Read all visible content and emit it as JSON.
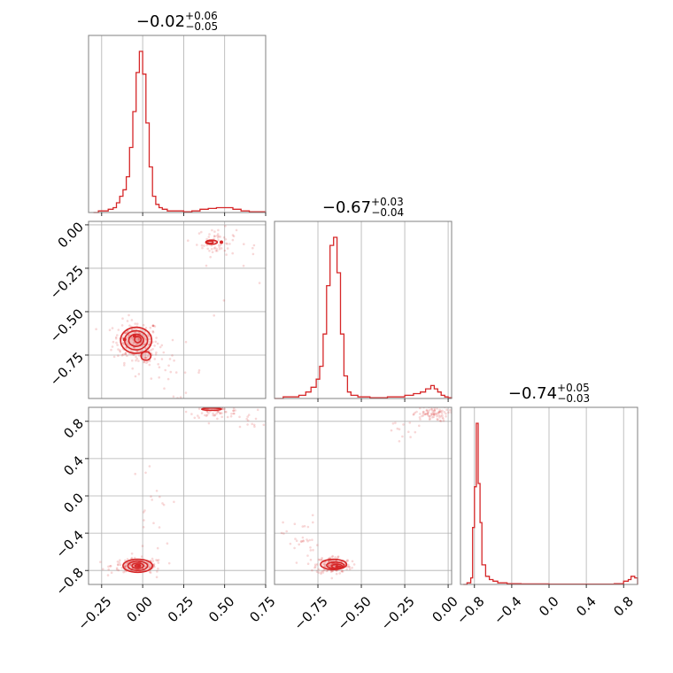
{
  "chart_data": {
    "type": "corner",
    "color": "#d62728",
    "axes_color": "#808080",
    "grid": true,
    "params": [
      {
        "median": -0.02,
        "plus": 0.06,
        "minus": 0.05,
        "title_main": "−0.02",
        "title_sup": "+0.06",
        "title_sub": "−0.05",
        "range": [
          -0.33,
          0.75
        ],
        "ticks": [
          -0.25,
          0.0,
          0.25,
          0.5,
          0.75
        ],
        "tick_labels": [
          "−0.25",
          "0.00",
          "0.25",
          "0.50",
          "0.75"
        ],
        "hist": [
          [
            -0.3,
            0.0
          ],
          [
            -0.27,
            0.01
          ],
          [
            -0.24,
            0.01
          ],
          [
            -0.21,
            0.02
          ],
          [
            -0.18,
            0.03
          ],
          [
            -0.16,
            0.06
          ],
          [
            -0.14,
            0.1
          ],
          [
            -0.12,
            0.14
          ],
          [
            -0.1,
            0.22
          ],
          [
            -0.08,
            0.4
          ],
          [
            -0.06,
            0.62
          ],
          [
            -0.04,
            0.86
          ],
          [
            -0.02,
            0.99
          ],
          [
            0.0,
            0.85
          ],
          [
            0.02,
            0.55
          ],
          [
            0.04,
            0.28
          ],
          [
            0.06,
            0.1
          ],
          [
            0.08,
            0.05
          ],
          [
            0.1,
            0.03
          ],
          [
            0.12,
            0.02
          ],
          [
            0.15,
            0.01
          ],
          [
            0.2,
            0.01
          ],
          [
            0.25,
            0.005
          ],
          [
            0.3,
            0.01
          ],
          [
            0.35,
            0.02
          ],
          [
            0.4,
            0.025
          ],
          [
            0.45,
            0.03
          ],
          [
            0.5,
            0.03
          ],
          [
            0.55,
            0.02
          ],
          [
            0.6,
            0.01
          ],
          [
            0.65,
            0.005
          ],
          [
            0.7,
            0.005
          ],
          [
            0.75,
            0.0
          ]
        ]
      },
      {
        "median": -0.67,
        "plus": 0.03,
        "minus": 0.04,
        "title_main": "−0.67",
        "title_sup": "+0.03",
        "title_sub": "−0.04",
        "range": [
          -1.0,
          0.02
        ],
        "ticks": [
          -0.75,
          -0.5,
          -0.25,
          0.0
        ],
        "tick_labels": [
          "−0.75",
          "−0.50",
          "−0.25",
          "0.00"
        ],
        "hist": [
          [
            -1.0,
            0.0
          ],
          [
            -0.95,
            0.01
          ],
          [
            -0.9,
            0.01
          ],
          [
            -0.86,
            0.02
          ],
          [
            -0.82,
            0.04
          ],
          [
            -0.79,
            0.07
          ],
          [
            -0.76,
            0.12
          ],
          [
            -0.74,
            0.2
          ],
          [
            -0.72,
            0.4
          ],
          [
            -0.7,
            0.7
          ],
          [
            -0.68,
            0.95
          ],
          [
            -0.66,
            1.0
          ],
          [
            -0.64,
            0.78
          ],
          [
            -0.62,
            0.4
          ],
          [
            -0.6,
            0.14
          ],
          [
            -0.58,
            0.04
          ],
          [
            -0.56,
            0.02
          ],
          [
            -0.52,
            0.01
          ],
          [
            -0.45,
            0.005
          ],
          [
            -0.35,
            0.01
          ],
          [
            -0.25,
            0.02
          ],
          [
            -0.2,
            0.03
          ],
          [
            -0.16,
            0.04
          ],
          [
            -0.13,
            0.06
          ],
          [
            -0.1,
            0.08
          ],
          [
            -0.08,
            0.06
          ],
          [
            -0.06,
            0.04
          ],
          [
            -0.04,
            0.02
          ],
          [
            -0.02,
            0.01
          ],
          [
            0.0,
            0.005
          ],
          [
            0.02,
            0.0
          ]
        ]
      },
      {
        "median": -0.74,
        "plus": 0.05,
        "minus": 0.03,
        "title_main": "−0.74",
        "title_sup": "+0.05",
        "title_sub": "−0.03",
        "range": [
          -0.95,
          0.95
        ],
        "ticks": [
          -0.8,
          -0.4,
          0.0,
          0.4,
          0.8
        ],
        "tick_labels": [
          "−0.8",
          "−0.4",
          "0.0",
          "0.4",
          "0.8"
        ],
        "hist": [
          [
            -0.92,
            0.0
          ],
          [
            -0.88,
            0.01
          ],
          [
            -0.84,
            0.04
          ],
          [
            -0.82,
            0.35
          ],
          [
            -0.8,
            0.6
          ],
          [
            -0.78,
            0.99
          ],
          [
            -0.76,
            0.62
          ],
          [
            -0.74,
            0.38
          ],
          [
            -0.72,
            0.12
          ],
          [
            -0.68,
            0.05
          ],
          [
            -0.64,
            0.03
          ],
          [
            -0.6,
            0.02
          ],
          [
            -0.55,
            0.01
          ],
          [
            -0.45,
            0.005
          ],
          [
            -0.3,
            0.003
          ],
          [
            0.0,
            0.002
          ],
          [
            0.4,
            0.002
          ],
          [
            0.7,
            0.005
          ],
          [
            0.8,
            0.02
          ],
          [
            0.85,
            0.03
          ],
          [
            0.88,
            0.05
          ],
          [
            0.92,
            0.04
          ],
          [
            0.95,
            0.0
          ]
        ]
      }
    ],
    "scatter_panels": [
      {
        "x_param": 0,
        "y_param": 1,
        "clusters": [
          {
            "cx": -0.04,
            "cy": -0.67,
            "sx": 0.07,
            "sy": 0.06,
            "n": 190
          },
          {
            "cx": 0.02,
            "cy": -0.76,
            "sx": 0.03,
            "sy": 0.03,
            "n": 30
          },
          {
            "cx": 0.45,
            "cy": -0.1,
            "sx": 0.06,
            "sy": 0.04,
            "n": 60
          },
          {
            "cx": 0.15,
            "cy": -0.85,
            "sx": 0.12,
            "sy": 0.08,
            "n": 30
          },
          {
            "cx": 0.6,
            "cy": -0.25,
            "sx": 0.12,
            "sy": 0.15,
            "n": 14
          }
        ],
        "contours": [
          {
            "cx": -0.04,
            "cy": -0.665,
            "rx": 0.095,
            "ry": 0.075
          },
          {
            "cx": -0.04,
            "cy": -0.665,
            "rx": 0.07,
            "ry": 0.055
          },
          {
            "cx": -0.04,
            "cy": -0.665,
            "rx": 0.045,
            "ry": 0.035
          },
          {
            "cx": -0.03,
            "cy": -0.66,
            "rx": 0.02,
            "ry": 0.018
          },
          {
            "cx": 0.02,
            "cy": -0.755,
            "rx": 0.03,
            "ry": 0.025
          },
          {
            "cx": 0.42,
            "cy": -0.1,
            "rx": 0.035,
            "ry": 0.012
          },
          {
            "cx": 0.41,
            "cy": -0.1,
            "rx": 0.02,
            "ry": 0.007
          }
        ],
        "dots": [
          [
            -0.11,
            -0.66
          ],
          [
            -0.05,
            -0.64
          ],
          [
            0.48,
            -0.1
          ]
        ]
      },
      {
        "x_param": 0,
        "y_param": 2,
        "clusters": [
          {
            "cx": -0.03,
            "cy": -0.75,
            "sx": 0.08,
            "sy": 0.04,
            "n": 160
          },
          {
            "cx": 0.45,
            "cy": 0.9,
            "sx": 0.08,
            "sy": 0.03,
            "n": 60
          },
          {
            "cx": 0.05,
            "cy": -0.2,
            "sx": 0.06,
            "sy": 0.3,
            "n": 22
          },
          {
            "cx": 0.65,
            "cy": 0.8,
            "sx": 0.06,
            "sy": 0.05,
            "n": 12
          }
        ],
        "contours": [
          {
            "cx": -0.03,
            "cy": -0.75,
            "rx": 0.09,
            "ry": 0.07
          },
          {
            "cx": -0.03,
            "cy": -0.75,
            "rx": 0.06,
            "ry": 0.05
          },
          {
            "cx": -0.03,
            "cy": -0.75,
            "rx": 0.035,
            "ry": 0.03
          },
          {
            "cx": -0.03,
            "cy": -0.75,
            "rx": 0.015,
            "ry": 0.012
          },
          {
            "cx": 0.42,
            "cy": 0.93,
            "rx": 0.06,
            "ry": 0.012
          }
        ],
        "dots": [
          [
            -0.02,
            -0.75
          ]
        ]
      },
      {
        "x_param": 1,
        "y_param": 2,
        "clusters": [
          {
            "cx": -0.66,
            "cy": -0.74,
            "sx": 0.05,
            "sy": 0.05,
            "n": 160
          },
          {
            "cx": -0.1,
            "cy": 0.88,
            "sx": 0.05,
            "sy": 0.04,
            "n": 80
          },
          {
            "cx": -0.85,
            "cy": -0.45,
            "sx": 0.05,
            "sy": 0.12,
            "n": 30
          },
          {
            "cx": -0.25,
            "cy": 0.7,
            "sx": 0.06,
            "sy": 0.08,
            "n": 14
          }
        ],
        "contours": [
          {
            "cx": -0.66,
            "cy": -0.735,
            "rx": 0.075,
            "ry": 0.055
          },
          {
            "cx": -0.65,
            "cy": -0.745,
            "rx": 0.05,
            "ry": 0.035
          },
          {
            "cx": -0.64,
            "cy": -0.755,
            "rx": 0.03,
            "ry": 0.022
          },
          {
            "cx": -0.63,
            "cy": -0.765,
            "rx": 0.012,
            "ry": 0.01
          }
        ],
        "dots": [
          [
            -0.64,
            -0.76
          ]
        ]
      }
    ]
  }
}
